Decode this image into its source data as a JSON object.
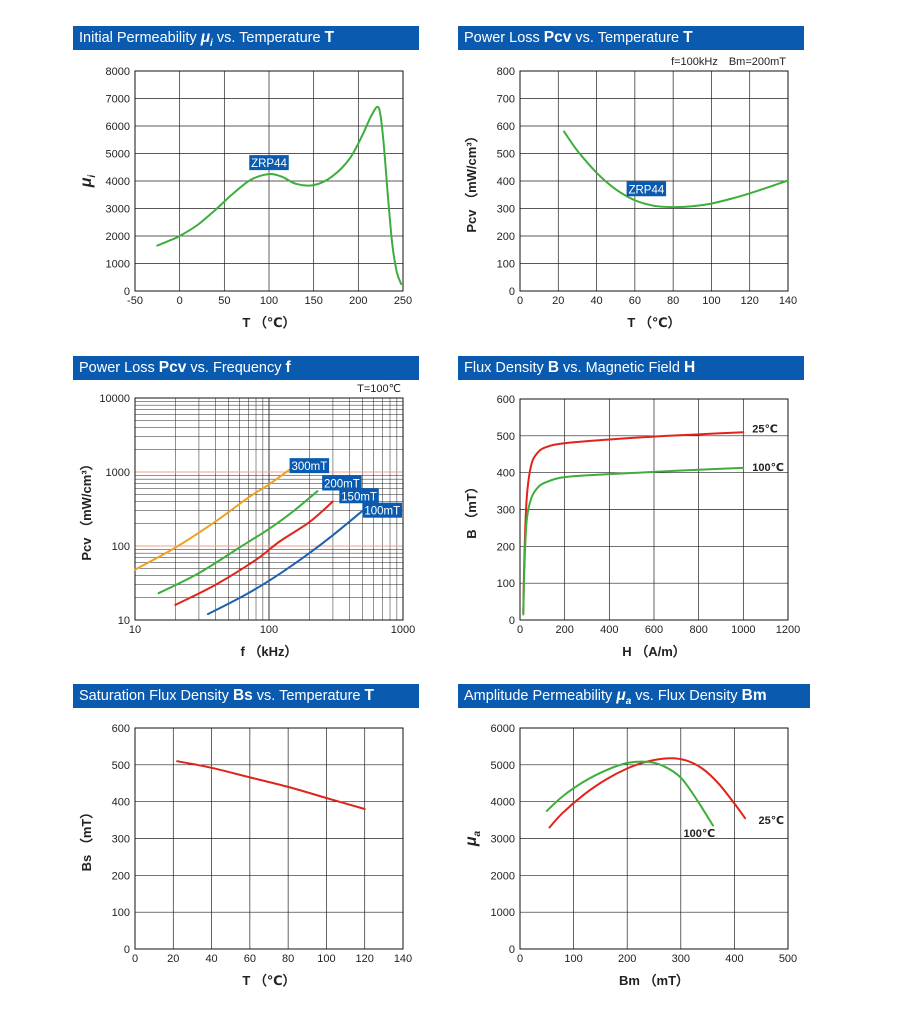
{
  "colors": {
    "title_bg": "#0a5bb0",
    "title_fg": "#ffffff",
    "grid": "#222222",
    "green": "#3cae3c",
    "red": "#e0241b",
    "orange": "#f0a020",
    "blue": "#1f5faf",
    "pink_line": "#f2a08a"
  },
  "chart_data": [
    {
      "id": "p1",
      "type": "line",
      "title": {
        "pre": "Initial Permeability ",
        "sym": "μ",
        "sub": "i",
        "mid": " vs. Temperature ",
        "bold": "T"
      },
      "ylabel": "μi",
      "xlabel": "T （℃）",
      "xlim": [
        -50,
        250
      ],
      "ylim": [
        0,
        8000
      ],
      "xticks": [
        -50,
        0,
        50,
        100,
        150,
        200,
        250
      ],
      "yticks": [
        0,
        1000,
        2000,
        3000,
        4000,
        5000,
        6000,
        7000,
        8000
      ],
      "grid": true,
      "series": [
        {
          "name": "ZRP44",
          "color": "#3cae3c",
          "x": [
            -25,
            -10,
            0,
            20,
            40,
            60,
            80,
            100,
            115,
            130,
            150,
            170,
            190,
            205,
            215,
            223,
            228,
            233,
            238,
            243,
            248
          ],
          "y": [
            1650,
            1850,
            2000,
            2400,
            2950,
            3550,
            4050,
            4250,
            4150,
            3900,
            3850,
            4150,
            4800,
            5700,
            6400,
            6650,
            5500,
            3500,
            1700,
            700,
            250
          ]
        }
      ],
      "annotations": [
        {
          "text": "ZRP44",
          "x": 100,
          "y": 4650
        }
      ]
    },
    {
      "id": "p2",
      "type": "line",
      "title": {
        "pre": "Power Loss ",
        "bold": "Pcv",
        "mid": " vs. Temperature ",
        "bold2": "T"
      },
      "ylabel": "Pcv （mW/cm³）",
      "xlabel": "T （℃）",
      "conditions": "f=100kHz　Bm=200mT",
      "xlim": [
        0,
        140
      ],
      "ylim": [
        0,
        800
      ],
      "xticks": [
        0,
        20,
        40,
        60,
        80,
        100,
        120,
        140
      ],
      "yticks": [
        0,
        100,
        200,
        300,
        400,
        500,
        600,
        700,
        800
      ],
      "grid": true,
      "series": [
        {
          "name": "ZRP44",
          "color": "#3cae3c",
          "x": [
            23,
            30,
            40,
            50,
            60,
            70,
            80,
            90,
            100,
            110,
            120,
            130,
            140
          ],
          "y": [
            580,
            510,
            430,
            370,
            330,
            310,
            305,
            308,
            318,
            335,
            355,
            378,
            402
          ]
        }
      ],
      "annotations": [
        {
          "text": "ZRP44",
          "x": 68,
          "y": 370
        }
      ]
    },
    {
      "id": "p3",
      "type": "line",
      "yscale": "log",
      "xscale": "log",
      "title": {
        "pre": "Power Loss ",
        "bold": "Pcv",
        "mid": " vs. Frequency ",
        "bold2": "f"
      },
      "ylabel": "Pcv （mW/cm³）",
      "xlabel": "f （kHz）",
      "conditions": "T=100℃",
      "xlim": [
        10,
        1000
      ],
      "ylim": [
        10,
        10000
      ],
      "xticks": [
        10,
        100,
        1000
      ],
      "yticks": [
        10,
        100,
        1000,
        10000
      ],
      "grid": true,
      "series": [
        {
          "name": "300mT",
          "color": "#f0a020",
          "x": [
            10,
            20,
            40,
            70,
            100,
            150
          ],
          "y": [
            48,
            95,
            215,
            450,
            680,
            1150
          ]
        },
        {
          "name": "200mT",
          "color": "#3cae3c",
          "x": [
            15,
            30,
            60,
            100,
            150,
            230
          ],
          "y": [
            23,
            43,
            95,
            170,
            290,
            550
          ]
        },
        {
          "name": "150mT",
          "color": "#e0241b",
          "x": [
            20,
            40,
            80,
            120,
            200,
            300
          ],
          "y": [
            16,
            30,
            65,
            115,
            210,
            400
          ]
        },
        {
          "name": "100mT",
          "color": "#1f5faf",
          "x": [
            35,
            70,
            120,
            200,
            300,
            500
          ],
          "y": [
            12,
            23,
            42,
            80,
            140,
            300
          ]
        }
      ]
    },
    {
      "id": "p4",
      "type": "line",
      "title": {
        "pre": "Flux Density ",
        "bold": "B",
        "mid": " vs. Magnetic Field ",
        "bold2": "H"
      },
      "ylabel": "B （mT）",
      "xlabel": "H （A/m）",
      "xlim": [
        0,
        1200
      ],
      "ylim": [
        0,
        600
      ],
      "xticks": [
        0,
        200,
        400,
        600,
        800,
        1000,
        1200
      ],
      "yticks": [
        0,
        100,
        200,
        300,
        400,
        500,
        600
      ],
      "grid": true,
      "series": [
        {
          "name": "25℃",
          "color": "#e0241b",
          "x": [
            15,
            20,
            30,
            50,
            80,
            120,
            200,
            400,
            600,
            800,
            1000
          ],
          "y": [
            20,
            180,
            330,
            420,
            455,
            470,
            480,
            490,
            498,
            504,
            510
          ]
        },
        {
          "name": "100℃",
          "color": "#3cae3c",
          "x": [
            15,
            20,
            30,
            50,
            80,
            120,
            200,
            400,
            600,
            800,
            1000
          ],
          "y": [
            15,
            150,
            270,
            330,
            360,
            375,
            388,
            396,
            402,
            408,
            413
          ]
        }
      ]
    },
    {
      "id": "p5",
      "type": "line",
      "title": {
        "pre": "Saturation Flux Density ",
        "bold": "Bs",
        "mid": " vs. Temperature ",
        "bold2": "T"
      },
      "ylabel": "Bs （mT）",
      "xlabel": "T （℃）",
      "xlim": [
        0,
        140
      ],
      "ylim": [
        0,
        600
      ],
      "xticks": [
        0,
        20,
        40,
        60,
        80,
        100,
        120,
        140
      ],
      "yticks": [
        0,
        100,
        200,
        300,
        400,
        500,
        600
      ],
      "grid": true,
      "series": [
        {
          "color": "#e0241b",
          "x": [
            22,
            40,
            60,
            80,
            100,
            120
          ],
          "y": [
            510,
            492,
            466,
            440,
            410,
            380
          ]
        }
      ]
    },
    {
      "id": "p6",
      "type": "line",
      "title": {
        "pre": "Amplitude Permeability ",
        "sym": "μ",
        "sub": "a",
        "mid": " vs. Flux Density ",
        "bold": "Bm"
      },
      "ylabel": "μa",
      "xlabel": "Bm （mT）",
      "xlim": [
        0,
        500
      ],
      "ylim": [
        0,
        6000
      ],
      "xticks": [
        0,
        100,
        200,
        300,
        400,
        500
      ],
      "yticks": [
        0,
        1000,
        2000,
        3000,
        4000,
        5000,
        6000
      ],
      "grid": true,
      "series": [
        {
          "name": "25℃",
          "color": "#e0241b",
          "x": [
            55,
            80,
            120,
            160,
            200,
            240,
            280,
            310,
            340,
            370,
            400,
            420
          ],
          "y": [
            3300,
            3700,
            4200,
            4600,
            4900,
            5100,
            5180,
            5120,
            4900,
            4500,
            3950,
            3550
          ]
        },
        {
          "name": "100℃",
          "color": "#3cae3c",
          "x": [
            50,
            80,
            120,
            160,
            200,
            240,
            270,
            300,
            330,
            360
          ],
          "y": [
            3750,
            4150,
            4550,
            4850,
            5050,
            5080,
            4950,
            4650,
            4050,
            3350
          ]
        }
      ]
    }
  ]
}
